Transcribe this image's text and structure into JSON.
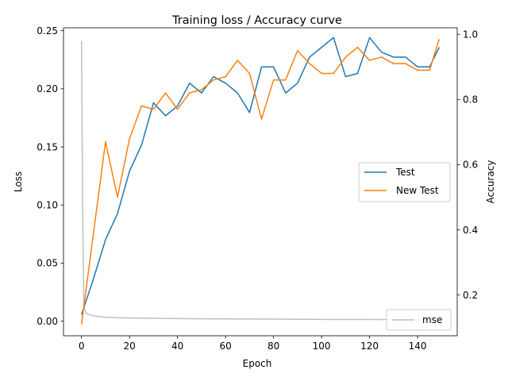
{
  "chart_data": {
    "type": "line",
    "title": "Training loss / Accuracy curve",
    "xlabel": "Epoch",
    "ylabel_left": "Loss",
    "ylabel_right": "Accuracy",
    "xlim": [
      -7.5,
      156.5
    ],
    "ylim_left": [
      -0.0125,
      0.2525
    ],
    "ylim_right": [
      0.075,
      1.02
    ],
    "x_ticks": [
      0,
      20,
      40,
      60,
      80,
      100,
      120,
      140
    ],
    "y_ticks_left": [
      "0.00",
      "0.05",
      "0.10",
      "0.15",
      "0.20",
      "0.25"
    ],
    "y_ticks_right": [
      "0.2",
      "0.4",
      "0.6",
      "0.8",
      "1.0"
    ],
    "grid": false,
    "legend_right_axis": {
      "placement": "center-right",
      "entries": [
        "Test",
        "New Test"
      ]
    },
    "legend_left_axis": {
      "placement": "lower-right",
      "entries": [
        "mse"
      ]
    },
    "colors": {
      "Test": "#1f77b4",
      "New Test": "#ff7f0e",
      "mse": "#bfbfbf"
    },
    "series": [
      {
        "name": "Test",
        "axis": "right",
        "x": [
          0,
          5,
          10,
          15,
          20,
          25,
          30,
          35,
          40,
          45,
          50,
          55,
          60,
          65,
          70,
          75,
          80,
          85,
          90,
          95,
          100,
          105,
          110,
          115,
          120,
          125,
          130,
          135,
          140,
          145,
          149
        ],
        "values": [
          0.14,
          0.25,
          0.37,
          0.45,
          0.58,
          0.66,
          0.79,
          0.75,
          0.78,
          0.85,
          0.82,
          0.87,
          0.85,
          0.82,
          0.76,
          0.9,
          0.9,
          0.82,
          0.85,
          0.93,
          0.96,
          0.99,
          0.87,
          0.88,
          0.99,
          0.945,
          0.93,
          0.93,
          0.9,
          0.9,
          0.96
        ]
      },
      {
        "name": "New Test",
        "axis": "right",
        "x": [
          0,
          5,
          10,
          15,
          20,
          25,
          30,
          35,
          40,
          45,
          50,
          55,
          60,
          65,
          70,
          75,
          80,
          85,
          90,
          95,
          100,
          105,
          110,
          115,
          120,
          125,
          130,
          135,
          140,
          145,
          149
        ],
        "values": [
          0.11,
          0.39,
          0.67,
          0.5,
          0.68,
          0.78,
          0.77,
          0.82,
          0.77,
          0.82,
          0.83,
          0.86,
          0.87,
          0.92,
          0.88,
          0.74,
          0.86,
          0.86,
          0.95,
          0.91,
          0.88,
          0.88,
          0.93,
          0.96,
          0.92,
          0.93,
          0.91,
          0.91,
          0.89,
          0.89,
          0.985
        ]
      },
      {
        "name": "mse",
        "axis": "left",
        "x": [
          0,
          0.5,
          1,
          1.5,
          2,
          3,
          4,
          5,
          7,
          10,
          15,
          20,
          30,
          40,
          50,
          60,
          70,
          80,
          90,
          100,
          110,
          120,
          130,
          140,
          149
        ],
        "values": [
          0.241,
          0.09,
          0.013,
          0.009,
          0.007,
          0.006,
          0.0053,
          0.0047,
          0.004,
          0.0035,
          0.003,
          0.0028,
          0.0025,
          0.0023,
          0.0021,
          0.002,
          0.0019,
          0.0018,
          0.0017,
          0.0016,
          0.0015,
          0.0015,
          0.0014,
          0.0014,
          0.0013
        ]
      }
    ]
  }
}
